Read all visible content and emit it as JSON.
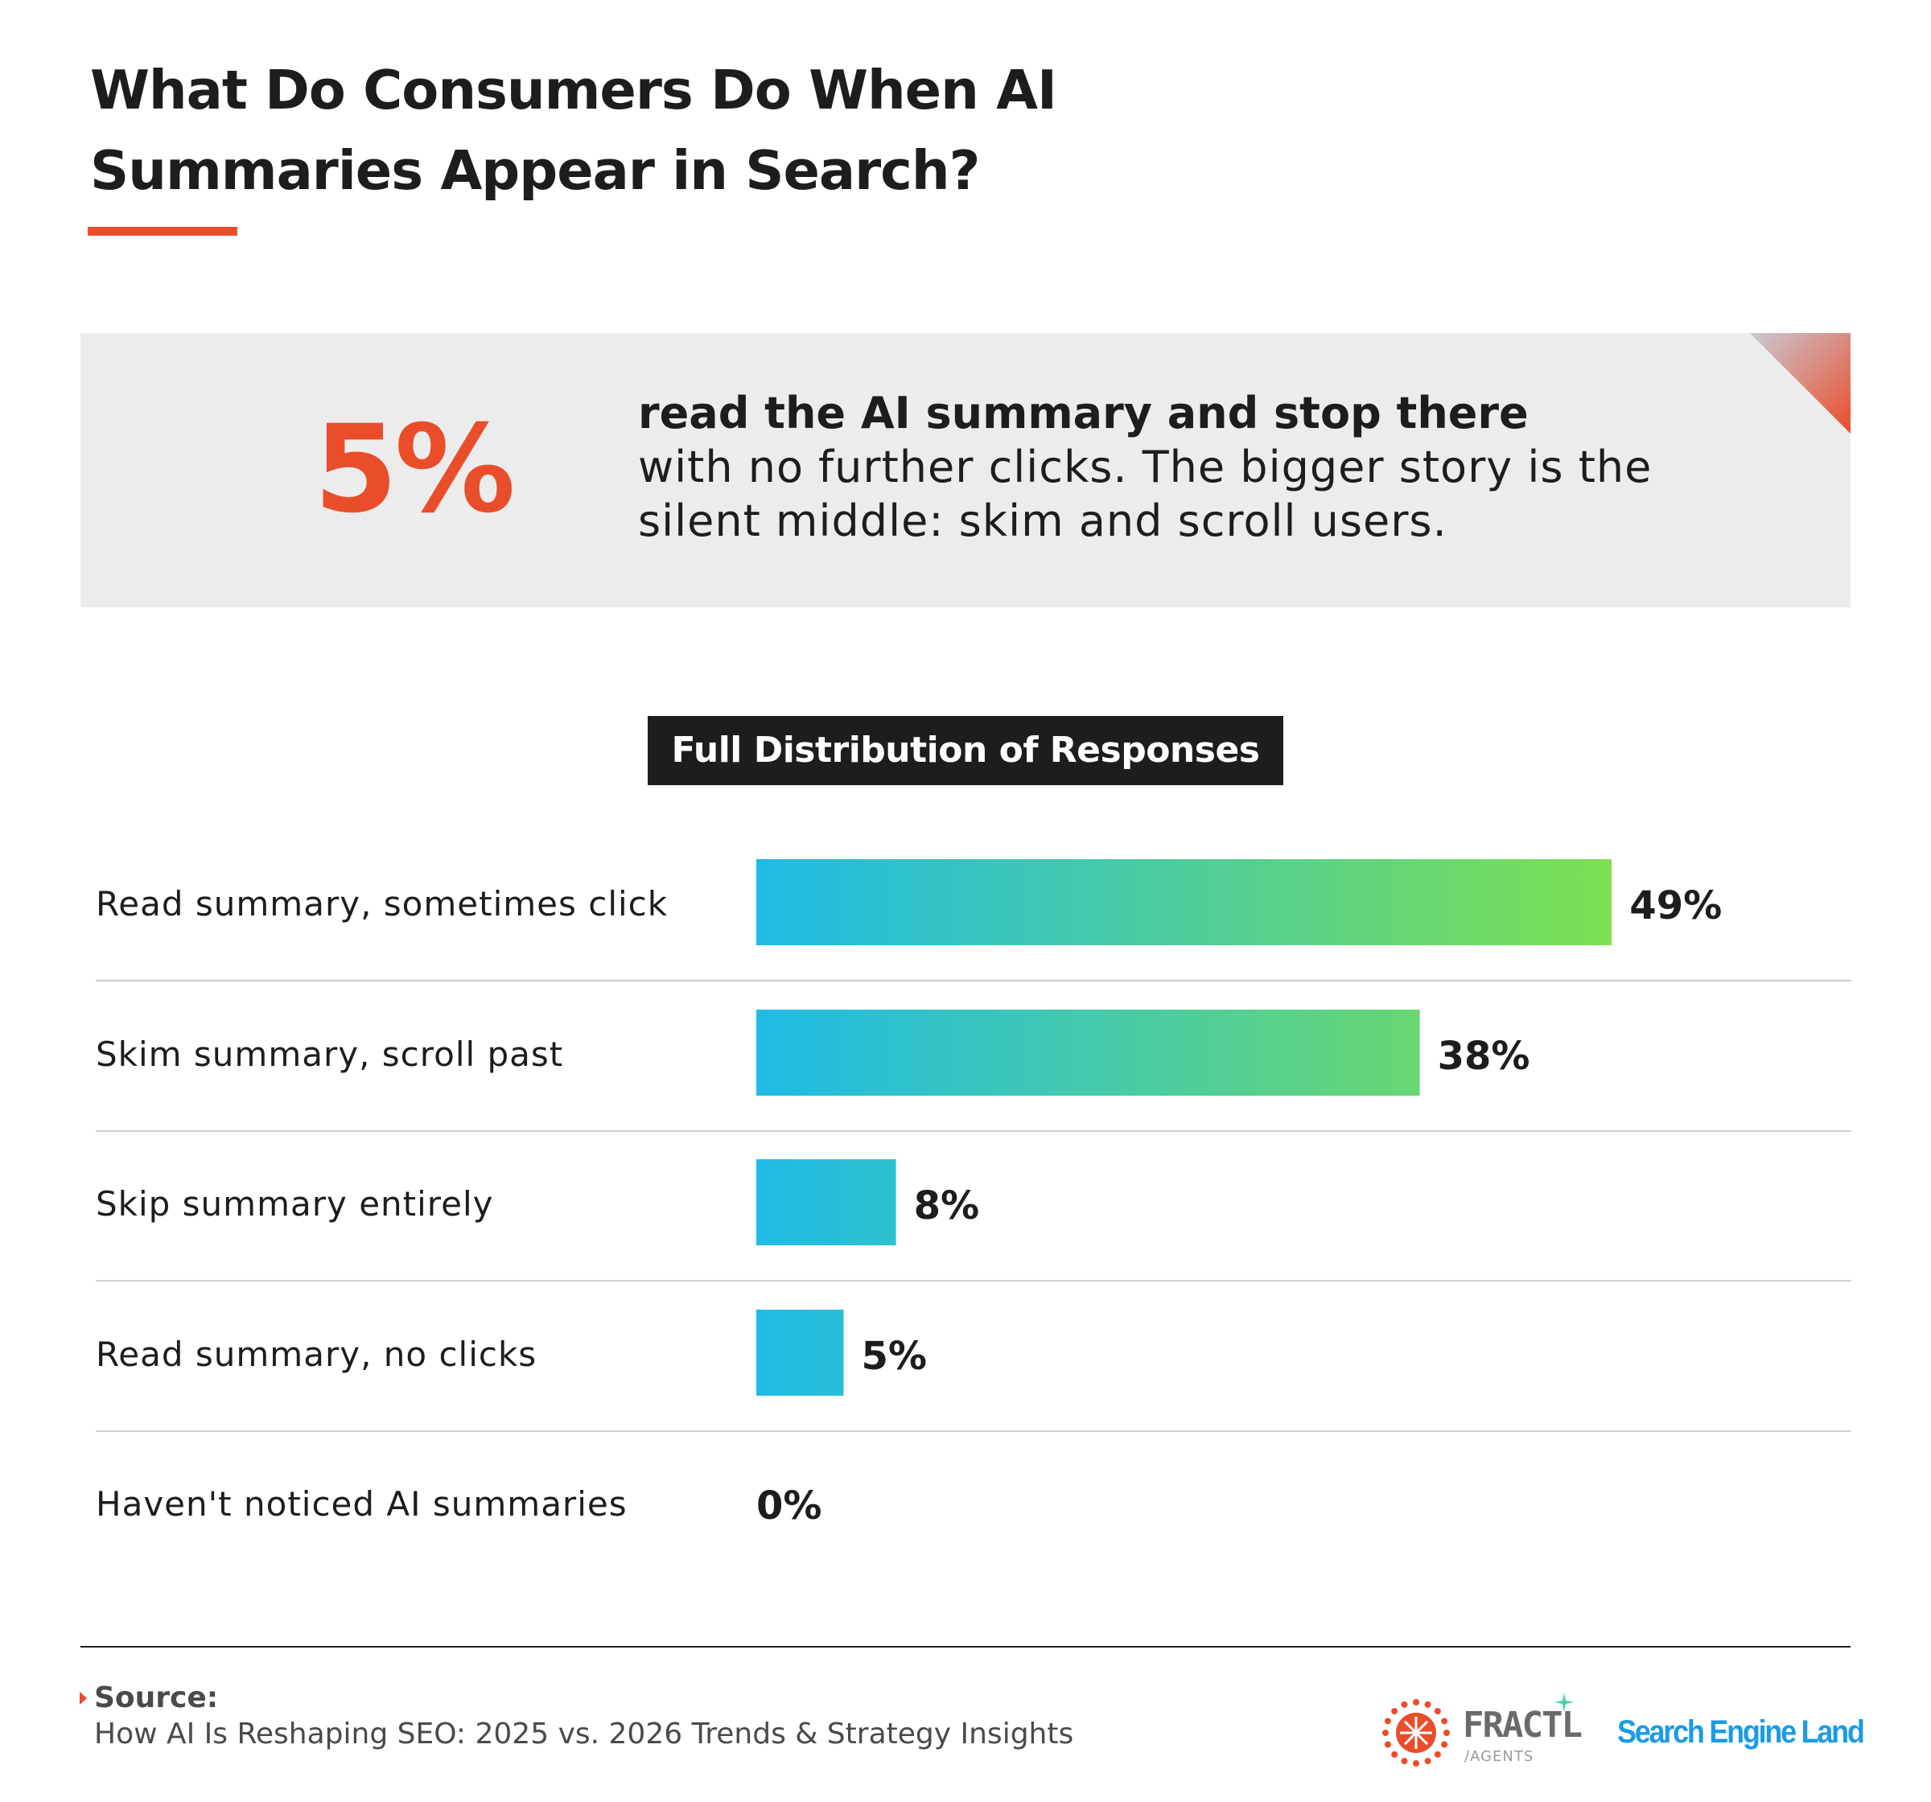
{
  "title": "What Do Consumers Do When AI Summaries Appear in Search?",
  "callout": {
    "value": "5%",
    "headline": "read the AI summary and stop there",
    "body": "with no further clicks. The bigger story is the silent middle: skim and scroll users."
  },
  "chart_data": {
    "type": "bar",
    "orientation": "horizontal",
    "title": "Full Distribution of Responses",
    "categories": [
      "Read summary, sometimes click",
      "Skim summary, scroll past",
      "Skip summary entirely",
      "Read summary, no clicks",
      "Haven't noticed AI summaries"
    ],
    "values": [
      49,
      38,
      8,
      5,
      0
    ],
    "value_labels": [
      "49%",
      "38%",
      "8%",
      "5%",
      "0%"
    ],
    "unit": "%",
    "xlim": [
      0,
      100
    ],
    "grid": false,
    "legend": "none",
    "colors": {
      "start": "#1fbbe6",
      "end": "#7de050"
    }
  },
  "footer": {
    "source_title": "Source:",
    "source_text": "How AI Is Reshaping SEO: 2025 vs. 2026 Trends & Strategy Insights",
    "logos": {
      "fractl_word": "FRACTL",
      "fractl_sub": "/AGENTS",
      "fractl_icon": "sunburst-icon",
      "partner": "Search Engine Land"
    }
  },
  "accent_color": "#ea4d2a"
}
